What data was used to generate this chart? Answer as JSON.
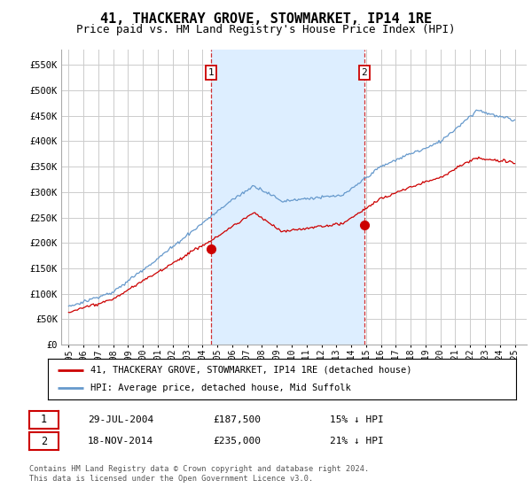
{
  "title": "41, THACKERAY GROVE, STOWMARKET, IP14 1RE",
  "subtitle": "Price paid vs. HM Land Registry's House Price Index (HPI)",
  "title_fontsize": 11,
  "subtitle_fontsize": 9,
  "ylabel_ticks": [
    "£0",
    "£50K",
    "£100K",
    "£150K",
    "£200K",
    "£250K",
    "£300K",
    "£350K",
    "£400K",
    "£450K",
    "£500K",
    "£550K"
  ],
  "ytick_vals": [
    0,
    50000,
    100000,
    150000,
    200000,
    250000,
    300000,
    350000,
    400000,
    450000,
    500000,
    550000
  ],
  "ylim": [
    0,
    580000
  ],
  "hpi_color": "#6699cc",
  "price_color": "#cc0000",
  "vline_color": "#cc0000",
  "bg_color": "#ffffff",
  "shade_color": "#ddeeff",
  "sale1_year": 2004.57,
  "sale1_price": 187500,
  "sale2_year": 2014.88,
  "sale2_price": 235000,
  "legend_label_price": "41, THACKERAY GROVE, STOWMARKET, IP14 1RE (detached house)",
  "legend_label_hpi": "HPI: Average price, detached house, Mid Suffolk",
  "note1_label": "1",
  "note1_date": "29-JUL-2004",
  "note1_price": "£187,500",
  "note1_hpi": "15% ↓ HPI",
  "note2_label": "2",
  "note2_date": "18-NOV-2014",
  "note2_price": "£235,000",
  "note2_hpi": "21% ↓ HPI",
  "footer": "Contains HM Land Registry data © Crown copyright and database right 2024.\nThis data is licensed under the Open Government Licence v3.0."
}
